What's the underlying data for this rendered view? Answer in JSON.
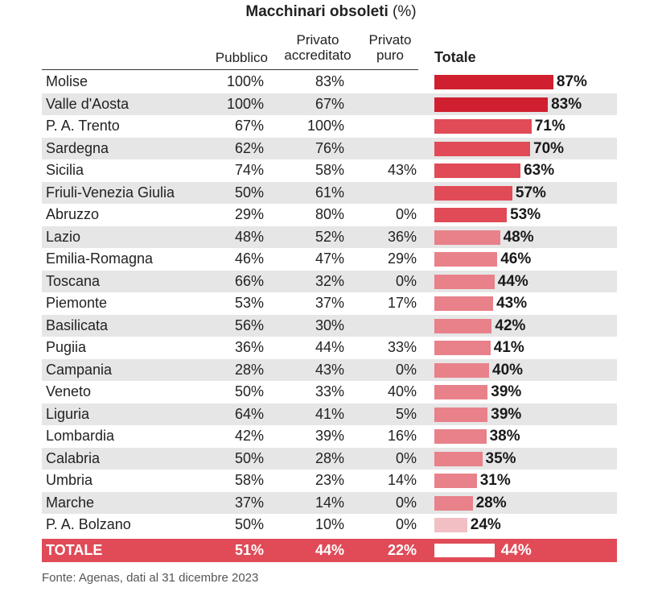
{
  "header": {
    "title_bold": "Macchinari obsoleti",
    "title_unit": "(%)",
    "col_pubblico": "Pubblico",
    "col_accreditato_line1": "Privato",
    "col_accreditato_line2": "accreditato",
    "col_puro_line1": "Privato",
    "col_puro_line2": "puro",
    "col_totale": "Totale"
  },
  "chart_data": {
    "type": "bar",
    "title": "Macchinari obsoleti (%)",
    "categories": [
      "Molise",
      "Valle d'Aosta",
      "P. A. Trento",
      "Sardegna",
      "Sicilia",
      "Friuli-Venezia Giulia",
      "Abruzzo",
      "Lazio",
      "Emilia-Romagna",
      "Toscana",
      "Piemonte",
      "Basilicata",
      "Pugiia",
      "Campania",
      "Veneto",
      "Liguria",
      "Lombardia",
      "Calabria",
      "Umbria",
      "Marche",
      "P. A. Bolzano"
    ],
    "series": [
      {
        "name": "Pubblico",
        "values": [
          "100%",
          "100%",
          "67%",
          "62%",
          "74%",
          "50%",
          "29%",
          "48%",
          "46%",
          "66%",
          "53%",
          "56%",
          "36%",
          "28%",
          "50%",
          "64%",
          "42%",
          "50%",
          "58%",
          "37%",
          "50%"
        ]
      },
      {
        "name": "Privato accreditato",
        "values": [
          "83%",
          "67%",
          "100%",
          "76%",
          "58%",
          "61%",
          "80%",
          "52%",
          "47%",
          "32%",
          "37%",
          "30%",
          "44%",
          "43%",
          "33%",
          "41%",
          "39%",
          "28%",
          "23%",
          "14%",
          "10%"
        ]
      },
      {
        "name": "Privato puro",
        "values": [
          "",
          "",
          "",
          "",
          "43%",
          "",
          "0%",
          "36%",
          "29%",
          "0%",
          "17%",
          "",
          "33%",
          "0%",
          "40%",
          "5%",
          "16%",
          "0%",
          "14%",
          "0%",
          "0%"
        ]
      },
      {
        "name": "Totale",
        "values": [
          87,
          83,
          71,
          70,
          63,
          57,
          53,
          48,
          46,
          44,
          43,
          42,
          41,
          40,
          39,
          39,
          38,
          35,
          31,
          28,
          24
        ]
      }
    ],
    "totale_labels": [
      "87%",
      "83%",
      "71%",
      "70%",
      "63%",
      "57%",
      "53%",
      "48%",
      "46%",
      "44%",
      "43%",
      "42%",
      "41%",
      "40%",
      "39%",
      "39%",
      "38%",
      "35%",
      "31%",
      "28%",
      "24%"
    ],
    "total_row": {
      "label": "TOTALE",
      "pubblico": "51%",
      "accreditato": "44%",
      "puro": "22%",
      "totale": 44,
      "totale_label": "44%"
    },
    "colors": {
      "high": "#d0202f",
      "mid": "#e04b57",
      "low": "#e8818a",
      "lowest": "#f2c0c4",
      "total_band": "#e04b57",
      "row_shade": "#e6e6e6"
    }
  },
  "source": "Fonte: Agenas, dati al 31 dicembre 2023"
}
